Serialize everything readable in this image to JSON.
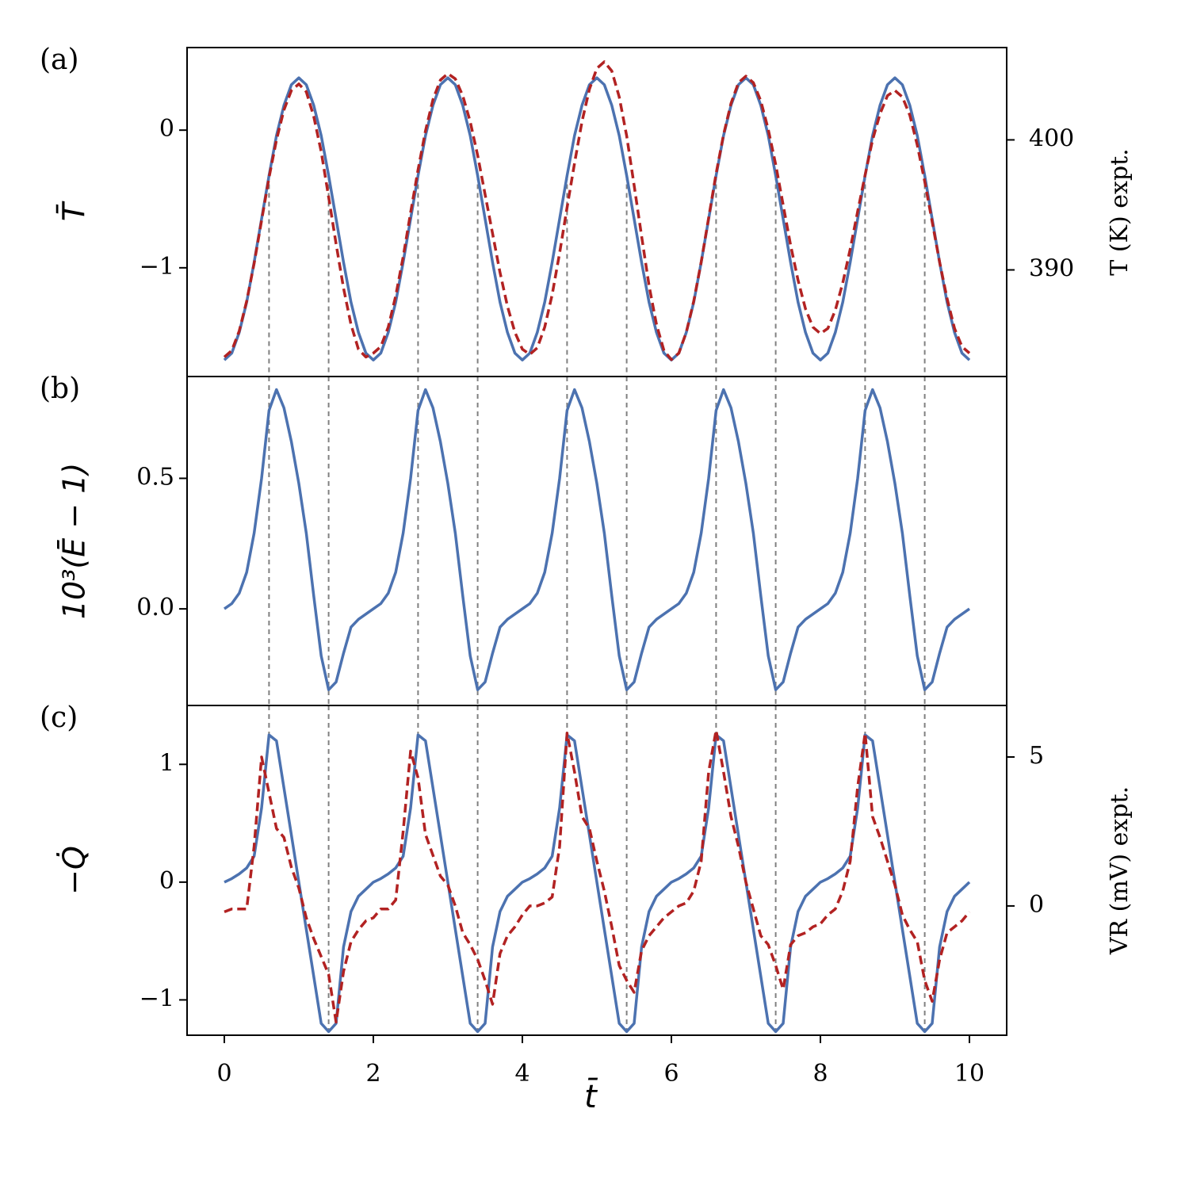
{
  "chart_data": [
    {
      "type": "line",
      "label": "(a)",
      "ylabel": "T̄",
      "y2label": "T (K) expt.",
      "x": [
        0,
        0.1,
        0.2,
        0.3,
        0.4,
        0.5,
        0.6,
        0.7,
        0.8,
        0.9,
        1,
        1.1,
        1.2,
        1.3,
        1.4,
        1.5,
        1.6,
        1.7,
        1.8,
        1.9,
        2,
        2.1,
        2.2,
        2.3,
        2.4,
        2.5,
        2.6,
        2.7,
        2.8,
        2.9,
        3,
        3.1,
        3.2,
        3.3,
        3.4,
        3.5,
        3.6,
        3.7,
        3.8,
        3.9,
        4,
        4.1,
        4.2,
        4.3,
        4.4,
        4.5,
        4.6,
        4.7,
        4.8,
        4.9,
        5,
        5.1,
        5.2,
        5.3,
        5.4,
        5.5,
        5.6,
        5.7,
        5.8,
        5.9,
        6,
        6.1,
        6.2,
        6.3,
        6.4,
        6.5,
        6.6,
        6.7,
        6.8,
        6.9,
        7,
        7.1,
        7.2,
        7.3,
        7.4,
        7.5,
        7.6,
        7.7,
        7.8,
        7.9,
        8,
        8.1,
        8.2,
        8.3,
        8.4,
        8.5,
        8.6,
        8.7,
        8.8,
        8.9,
        9,
        9.1,
        9.2,
        9.3,
        9.4,
        9.5,
        9.6,
        9.7,
        9.8,
        9.9,
        10
      ],
      "series": [
        {
          "color": "#4c72b0",
          "linestyle": "solid",
          "values": [
            -1.67,
            -1.62,
            -1.47,
            -1.25,
            -0.96,
            -0.645,
            -0.33,
            -0.04,
            0.18,
            0.33,
            0.38,
            0.33,
            0.18,
            -0.04,
            -0.33,
            -0.645,
            -0.96,
            -1.25,
            -1.47,
            -1.62,
            -1.67,
            -1.62,
            -1.47,
            -1.25,
            -0.96,
            -0.645,
            -0.33,
            -0.04,
            0.18,
            0.33,
            0.38,
            0.33,
            0.18,
            -0.04,
            -0.33,
            -0.645,
            -0.96,
            -1.25,
            -1.47,
            -1.62,
            -1.67,
            -1.62,
            -1.47,
            -1.25,
            -0.96,
            -0.645,
            -0.33,
            -0.04,
            0.18,
            0.33,
            0.38,
            0.33,
            0.18,
            -0.04,
            -0.33,
            -0.645,
            -0.96,
            -1.25,
            -1.47,
            -1.62,
            -1.67,
            -1.62,
            -1.47,
            -1.25,
            -0.96,
            -0.645,
            -0.33,
            -0.04,
            0.18,
            0.33,
            0.38,
            0.33,
            0.18,
            -0.04,
            -0.33,
            -0.645,
            -0.96,
            -1.25,
            -1.47,
            -1.62,
            -1.67,
            -1.62,
            -1.47,
            -1.25,
            -0.96,
            -0.645,
            -0.33,
            -0.04,
            0.18,
            0.33,
            0.38,
            0.33,
            0.18,
            -0.04,
            -0.33,
            -0.645,
            -0.96,
            -1.25,
            -1.47,
            -1.62,
            -1.67
          ]
        },
        {
          "color": "#b22222",
          "linestyle": "dashed",
          "axis": "y2",
          "values": [
            383.3,
            383.8,
            385.3,
            387.6,
            390.5,
            393.8,
            397.1,
            400.0,
            402.3,
            403.8,
            404.3,
            403.7,
            401.8,
            399.1,
            395.6,
            392.0,
            388.6,
            385.8,
            383.9,
            383.3,
            383.6,
            384.1,
            385.6,
            388.0,
            391.0,
            394.4,
            397.7,
            400.7,
            403.1,
            404.6,
            405.1,
            404.7,
            403.4,
            401.4,
            398.8,
            395.8,
            392.8,
            389.8,
            387.2,
            385.2,
            383.9,
            383.5,
            384.0,
            385.6,
            388.1,
            391.3,
            394.8,
            398.2,
            401.4,
            403.9,
            405.5,
            406.0,
            405.3,
            403.3,
            400.3,
            396.5,
            392.6,
            388.8,
            385.8,
            383.8,
            383.1,
            383.6,
            385.2,
            387.6,
            390.6,
            394.0,
            397.4,
            400.4,
            402.8,
            404.4,
            404.9,
            404.4,
            403.0,
            400.8,
            398.1,
            395.0,
            391.9,
            389.2,
            387.0,
            385.6,
            385.1,
            385.5,
            386.9,
            389.0,
            391.6,
            394.5,
            397.3,
            400.0,
            402.0,
            403.4,
            403.8,
            403.3,
            401.9,
            399.6,
            396.8,
            393.7,
            390.6,
            387.8,
            385.5,
            384.1,
            383.6
          ]
        }
      ],
      "xlim": [
        -0.5,
        10.5
      ],
      "ylim": [
        -1.79,
        0.6
      ],
      "yticks": [
        {
          "value": -1,
          "label": "−1"
        },
        0
      ],
      "y2lim": [
        381.8,
        407.1
      ],
      "y2ticks": [
        390,
        400
      ],
      "vlines": [
        0.6,
        1.4,
        2.6,
        3.4,
        4.6,
        5.4,
        6.6,
        7.4,
        8.6,
        9.4
      ]
    },
    {
      "type": "line",
      "label": "(b)",
      "ylabel": "10³(Ē − 1)",
      "x": [
        0,
        0.1,
        0.2,
        0.3,
        0.4,
        0.5,
        0.6,
        0.7,
        0.8,
        0.9,
        1,
        1.1,
        1.2,
        1.3,
        1.4,
        1.5,
        1.6,
        1.7,
        1.8,
        1.9,
        2,
        2.1,
        2.2,
        2.3,
        2.4,
        2.5,
        2.6,
        2.7,
        2.8,
        2.9,
        3,
        3.1,
        3.2,
        3.3,
        3.4,
        3.5,
        3.6,
        3.7,
        3.8,
        3.9,
        4,
        4.1,
        4.2,
        4.3,
        4.4,
        4.5,
        4.6,
        4.7,
        4.8,
        4.9,
        5,
        5.1,
        5.2,
        5.3,
        5.4,
        5.5,
        5.6,
        5.7,
        5.8,
        5.9,
        6,
        6.1,
        6.2,
        6.3,
        6.4,
        6.5,
        6.6,
        6.7,
        6.8,
        6.9,
        7,
        7.1,
        7.2,
        7.3,
        7.4,
        7.5,
        7.6,
        7.7,
        7.8,
        7.9,
        8,
        8.1,
        8.2,
        8.3,
        8.4,
        8.5,
        8.6,
        8.7,
        8.8,
        8.9,
        9,
        9.1,
        9.2,
        9.3,
        9.4,
        9.5,
        9.6,
        9.7,
        9.8,
        9.9,
        10
      ],
      "series": [
        {
          "color": "#4c72b0",
          "linestyle": "solid",
          "values": [
            0.0,
            0.02,
            0.06,
            0.14,
            0.29,
            0.5,
            0.76,
            0.84,
            0.77,
            0.64,
            0.48,
            0.29,
            0.05,
            -0.18,
            -0.31,
            -0.28,
            -0.17,
            -0.07,
            -0.04,
            -0.02,
            0.0,
            0.02,
            0.06,
            0.14,
            0.29,
            0.5,
            0.76,
            0.84,
            0.77,
            0.64,
            0.48,
            0.29,
            0.05,
            -0.18,
            -0.31,
            -0.28,
            -0.17,
            -0.07,
            -0.04,
            -0.02,
            0.0,
            0.02,
            0.06,
            0.14,
            0.29,
            0.5,
            0.76,
            0.84,
            0.77,
            0.64,
            0.48,
            0.29,
            0.05,
            -0.18,
            -0.31,
            -0.28,
            -0.17,
            -0.07,
            -0.04,
            -0.02,
            0.0,
            0.02,
            0.06,
            0.14,
            0.29,
            0.5,
            0.76,
            0.84,
            0.77,
            0.64,
            0.48,
            0.29,
            0.05,
            -0.18,
            -0.31,
            -0.28,
            -0.17,
            -0.07,
            -0.04,
            -0.02,
            0.0,
            0.02,
            0.06,
            0.14,
            0.29,
            0.5,
            0.76,
            0.84,
            0.77,
            0.64,
            0.48,
            0.29,
            0.05,
            -0.18,
            -0.31,
            -0.28,
            -0.17,
            -0.07,
            -0.04,
            -0.02,
            0.0
          ]
        }
      ],
      "xlim": [
        -0.5,
        10.5
      ],
      "ylim": [
        -0.37,
        0.89
      ],
      "yticks": [
        {
          "value": 0,
          "label": "0.0"
        },
        0.5
      ],
      "vlines": [
        0.6,
        1.4,
        2.6,
        3.4,
        4.6,
        5.4,
        6.6,
        7.4,
        8.6,
        9.4
      ]
    },
    {
      "type": "line",
      "label": "(c)",
      "ylabel": "−Q̇",
      "y2label": "VR (mV) expt.",
      "xlabel": "t̄",
      "x": [
        0,
        0.1,
        0.2,
        0.3,
        0.4,
        0.5,
        0.6,
        0.7,
        0.8,
        0.9,
        1,
        1.1,
        1.2,
        1.3,
        1.4,
        1.5,
        1.6,
        1.7,
        1.8,
        1.9,
        2,
        2.1,
        2.2,
        2.3,
        2.4,
        2.5,
        2.6,
        2.7,
        2.8,
        2.9,
        3,
        3.1,
        3.2,
        3.3,
        3.4,
        3.5,
        3.6,
        3.7,
        3.8,
        3.9,
        4,
        4.1,
        4.2,
        4.3,
        4.4,
        4.5,
        4.6,
        4.7,
        4.8,
        4.9,
        5,
        5.1,
        5.2,
        5.3,
        5.4,
        5.5,
        5.6,
        5.7,
        5.8,
        5.9,
        6,
        6.1,
        6.2,
        6.3,
        6.4,
        6.5,
        6.6,
        6.7,
        6.8,
        6.9,
        7,
        7.1,
        7.2,
        7.3,
        7.4,
        7.5,
        7.6,
        7.7,
        7.8,
        7.9,
        8,
        8.1,
        8.2,
        8.3,
        8.4,
        8.5,
        8.6,
        8.7,
        8.8,
        8.9,
        9,
        9.1,
        9.2,
        9.3,
        9.4,
        9.5,
        9.6,
        9.7,
        9.8,
        9.9,
        10
      ],
      "series": [
        {
          "color": "#4c72b0",
          "linestyle": "solid",
          "values": [
            0.0,
            0.03,
            0.07,
            0.12,
            0.22,
            0.63,
            1.25,
            1.2,
            0.8,
            0.4,
            0.0,
            -0.4,
            -0.8,
            -1.2,
            -1.27,
            -1.2,
            -0.55,
            -0.25,
            -0.12,
            -0.06,
            0.0,
            0.03,
            0.07,
            0.12,
            0.22,
            0.63,
            1.25,
            1.2,
            0.8,
            0.4,
            0.0,
            -0.4,
            -0.8,
            -1.2,
            -1.27,
            -1.2,
            -0.55,
            -0.25,
            -0.12,
            -0.06,
            0.0,
            0.03,
            0.07,
            0.12,
            0.22,
            0.63,
            1.25,
            1.2,
            0.8,
            0.4,
            0.0,
            -0.4,
            -0.8,
            -1.2,
            -1.27,
            -1.2,
            -0.55,
            -0.25,
            -0.12,
            -0.06,
            0.0,
            0.03,
            0.07,
            0.12,
            0.22,
            0.63,
            1.25,
            1.2,
            0.8,
            0.4,
            0.0,
            -0.4,
            -0.8,
            -1.2,
            -1.27,
            -1.2,
            -0.55,
            -0.25,
            -0.12,
            -0.06,
            0.0,
            0.03,
            0.07,
            0.12,
            0.22,
            0.63,
            1.25,
            1.2,
            0.8,
            0.4,
            0.0,
            -0.4,
            -0.8,
            -1.2,
            -1.27,
            -1.2,
            -0.55,
            -0.25,
            -0.12,
            -0.06,
            0.0
          ]
        },
        {
          "color": "#b22222",
          "linestyle": "dashed",
          "axis": "y2",
          "values": [
            -0.2,
            -0.1,
            -0.1,
            -0.1,
            2.0,
            5.0,
            3.8,
            2.6,
            2.3,
            1.3,
            0.6,
            -0.4,
            -1.1,
            -1.7,
            -2.3,
            -3.9,
            -2.2,
            -1.2,
            -0.8,
            -0.5,
            -0.4,
            -0.1,
            -0.1,
            0.2,
            2.5,
            5.2,
            4.3,
            2.4,
            1.7,
            1.0,
            0.7,
            0.0,
            -0.9,
            -1.3,
            -1.8,
            -2.5,
            -3.3,
            -1.6,
            -1.0,
            -0.7,
            -0.3,
            0.0,
            0.0,
            0.1,
            0.3,
            2.0,
            5.8,
            4.5,
            3.0,
            2.6,
            1.5,
            0.5,
            -0.7,
            -2.0,
            -2.5,
            -2.9,
            -1.5,
            -1.0,
            -0.7,
            -0.4,
            -0.2,
            0.0,
            0.1,
            0.5,
            1.5,
            4.5,
            5.9,
            4.5,
            3.0,
            2.0,
            0.8,
            -0.1,
            -1.0,
            -1.3,
            -2.0,
            -2.8,
            -1.3,
            -1.0,
            -0.9,
            -0.7,
            -0.6,
            -0.3,
            -0.1,
            0.5,
            1.5,
            4.0,
            5.8,
            3.0,
            2.3,
            1.5,
            0.7,
            -0.3,
            -0.8,
            -1.2,
            -2.5,
            -3.2,
            -1.8,
            -0.9,
            -0.7,
            -0.5,
            -0.2
          ]
        }
      ],
      "xlim": [
        -0.5,
        10.5
      ],
      "xticks": [
        0,
        2,
        4,
        6,
        8,
        10
      ],
      "ylim": [
        -1.3,
        1.5
      ],
      "yticks": [
        {
          "value": -1,
          "label": "−1"
        },
        0,
        1
      ],
      "y2lim": [
        -4.34,
        6.73
      ],
      "y2ticks": [
        0,
        5
      ],
      "vlines": [
        0.6,
        1.4,
        2.6,
        3.4,
        4.6,
        5.4,
        6.6,
        7.4,
        8.6,
        9.4
      ]
    }
  ]
}
